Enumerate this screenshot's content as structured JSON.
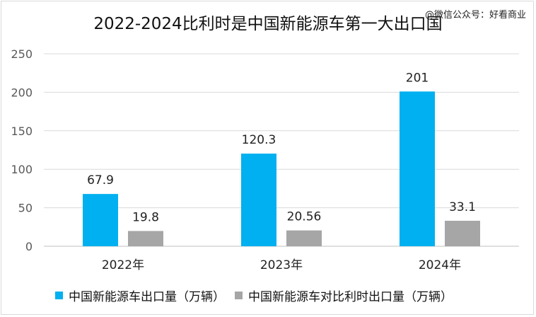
{
  "chart_data": {
    "type": "bar",
    "title": "2022-2024比利时是中国新能源车第一大出口国",
    "categories": [
      "2022年",
      "2023年",
      "2024年"
    ],
    "series": [
      {
        "name": "中国新能源车出口量（万辆）",
        "values": [
          67.9,
          120.3,
          201
        ],
        "labels": [
          "67.9",
          "120.3",
          "201"
        ],
        "color": "#00b0f0"
      },
      {
        "name": "中国新能源车对比利时出口量（万辆）",
        "values": [
          19.8,
          20.56,
          33.1
        ],
        "labels": [
          "19.8",
          "20.56",
          "33.1"
        ],
        "color": "#a6a6a6"
      }
    ],
    "yticks": [
      "0",
      "50",
      "100",
      "150",
      "200",
      "250"
    ],
    "ylim": [
      0,
      250
    ],
    "grid": true,
    "legend_position": "bottom"
  },
  "watermark": "@微信公众号：好看商业"
}
